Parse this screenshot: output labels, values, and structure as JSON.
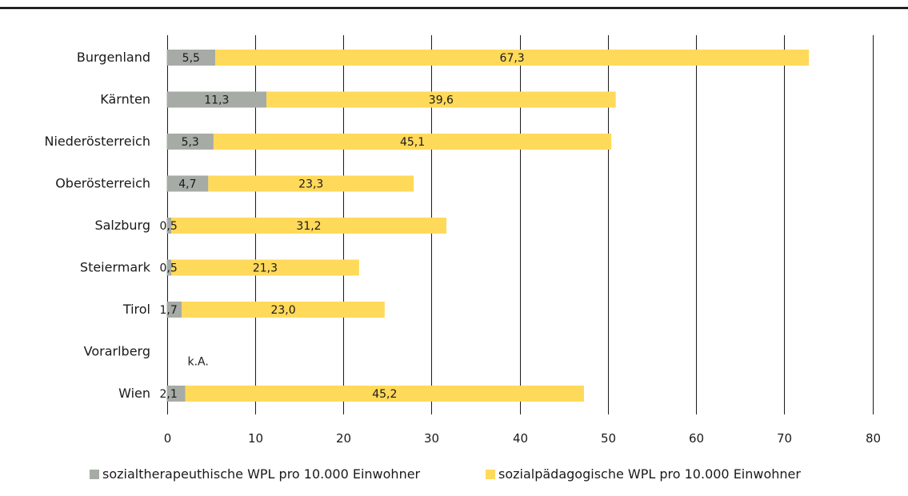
{
  "chart_data": {
    "type": "bar",
    "orientation": "horizontal",
    "stacked": true,
    "categories": [
      "Burgenland",
      "Kärnten",
      "Niederösterreich",
      "Oberösterreich",
      "Salzburg",
      "Steiermark",
      "Tirol",
      "Vorarlberg",
      "Wien"
    ],
    "series": [
      {
        "name": "sozialtherapeuthische WPL pro 10.000 Einwohner",
        "color": "#a6aba6",
        "values": [
          5.5,
          11.3,
          5.3,
          4.7,
          0.5,
          0.5,
          1.7,
          null,
          2.1
        ],
        "labels": [
          "5,5",
          "11,3",
          "5,3",
          "4,7",
          "0,5",
          "0,5",
          "1,7",
          "",
          "2,1"
        ]
      },
      {
        "name": "sozialpädagogische WPL pro 10.000 Einwohner",
        "color": "#ffd95a",
        "values": [
          67.3,
          39.6,
          45.1,
          23.3,
          31.2,
          21.3,
          23.0,
          null,
          45.2
        ],
        "labels": [
          "67,3",
          "39,6",
          "45,1",
          "23,3",
          "31,2",
          "21,3",
          "23,0",
          "",
          "45,2"
        ]
      }
    ],
    "annotations": [
      {
        "category": "Vorarlberg",
        "text": "k.A."
      }
    ],
    "xlim": [
      0,
      80
    ],
    "xticks": [
      0,
      10,
      20,
      30,
      40,
      50,
      60,
      70,
      80
    ],
    "xtick_labels": [
      "0",
      "10",
      "20",
      "30",
      "40",
      "50",
      "60",
      "70",
      "80"
    ],
    "grid": "vertical",
    "legend_position": "bottom"
  }
}
